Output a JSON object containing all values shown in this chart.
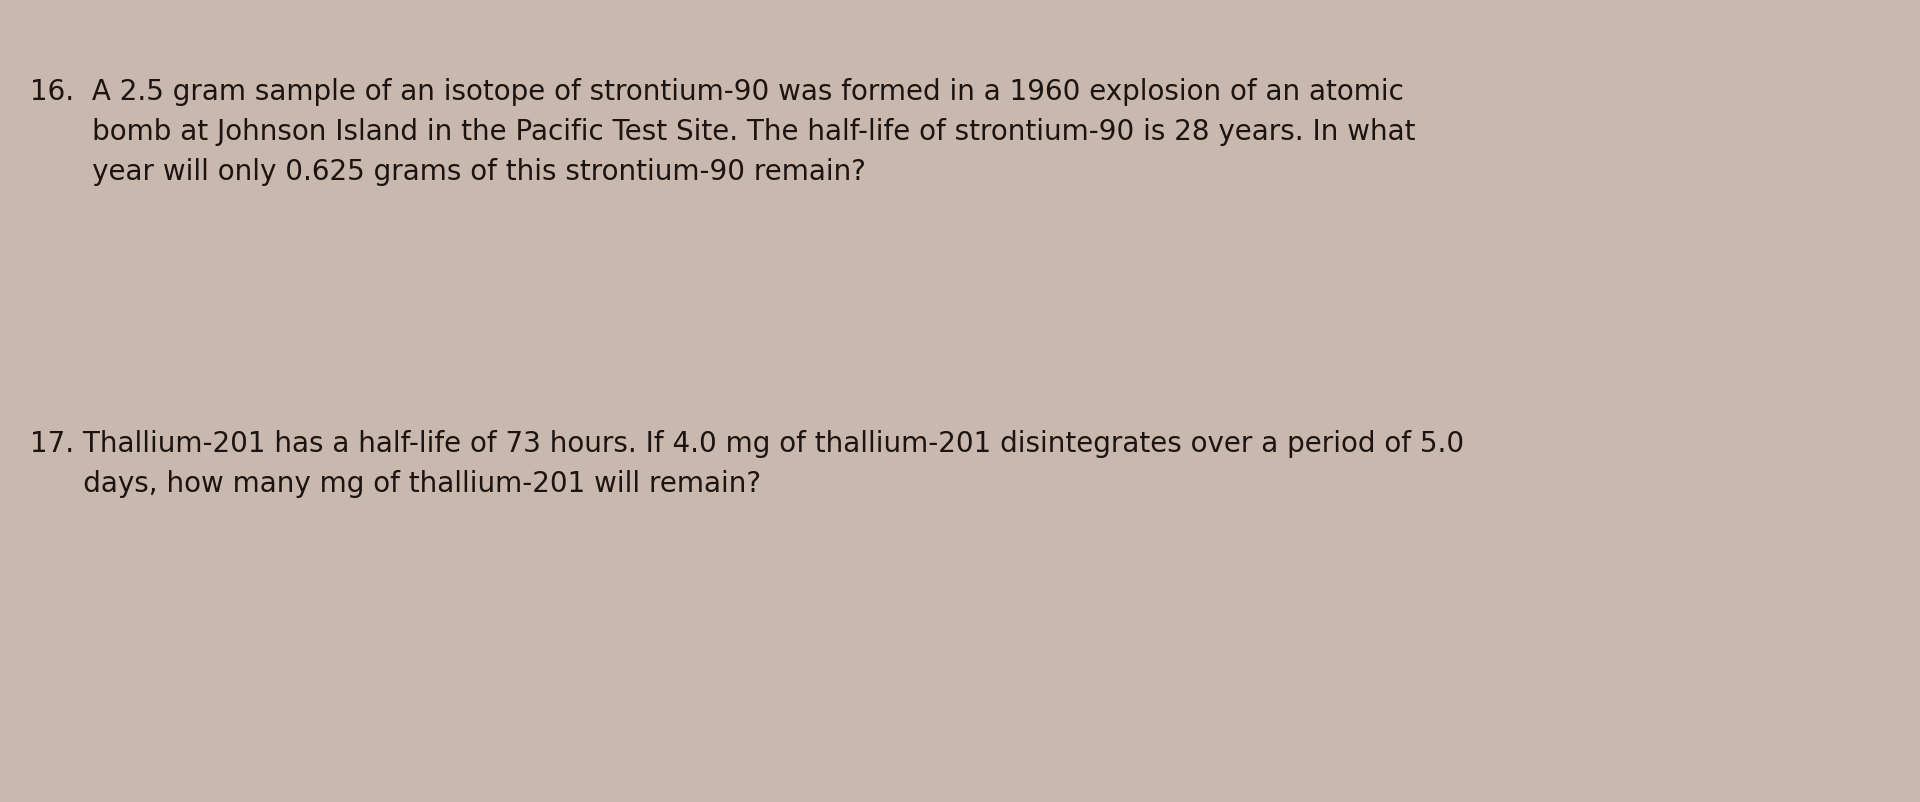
{
  "background_color": "#c9b8ad",
  "text_color": "#1c1410",
  "q16_line1": "16.  A 2.5 gram sample of an isotope of strontium-90 was formed in a 1960 explosion of an atomic",
  "q16_line2": "       bomb at Johnson Island in the Pacific Test Site. The half-life of strontium-90 is 28 years. In what",
  "q16_line3": "       year will only 0.625 grams of this strontium-90 remain?",
  "q17_line1": "17. Thallium-201 has a half-life of 73 hours. If 4.0 mg of thallium-201 disintegrates over a period of 5.0",
  "q17_line2": "      days, how many mg of thallium-201 will remain?",
  "font_size": 20,
  "font_family": "DejaVu Sans"
}
